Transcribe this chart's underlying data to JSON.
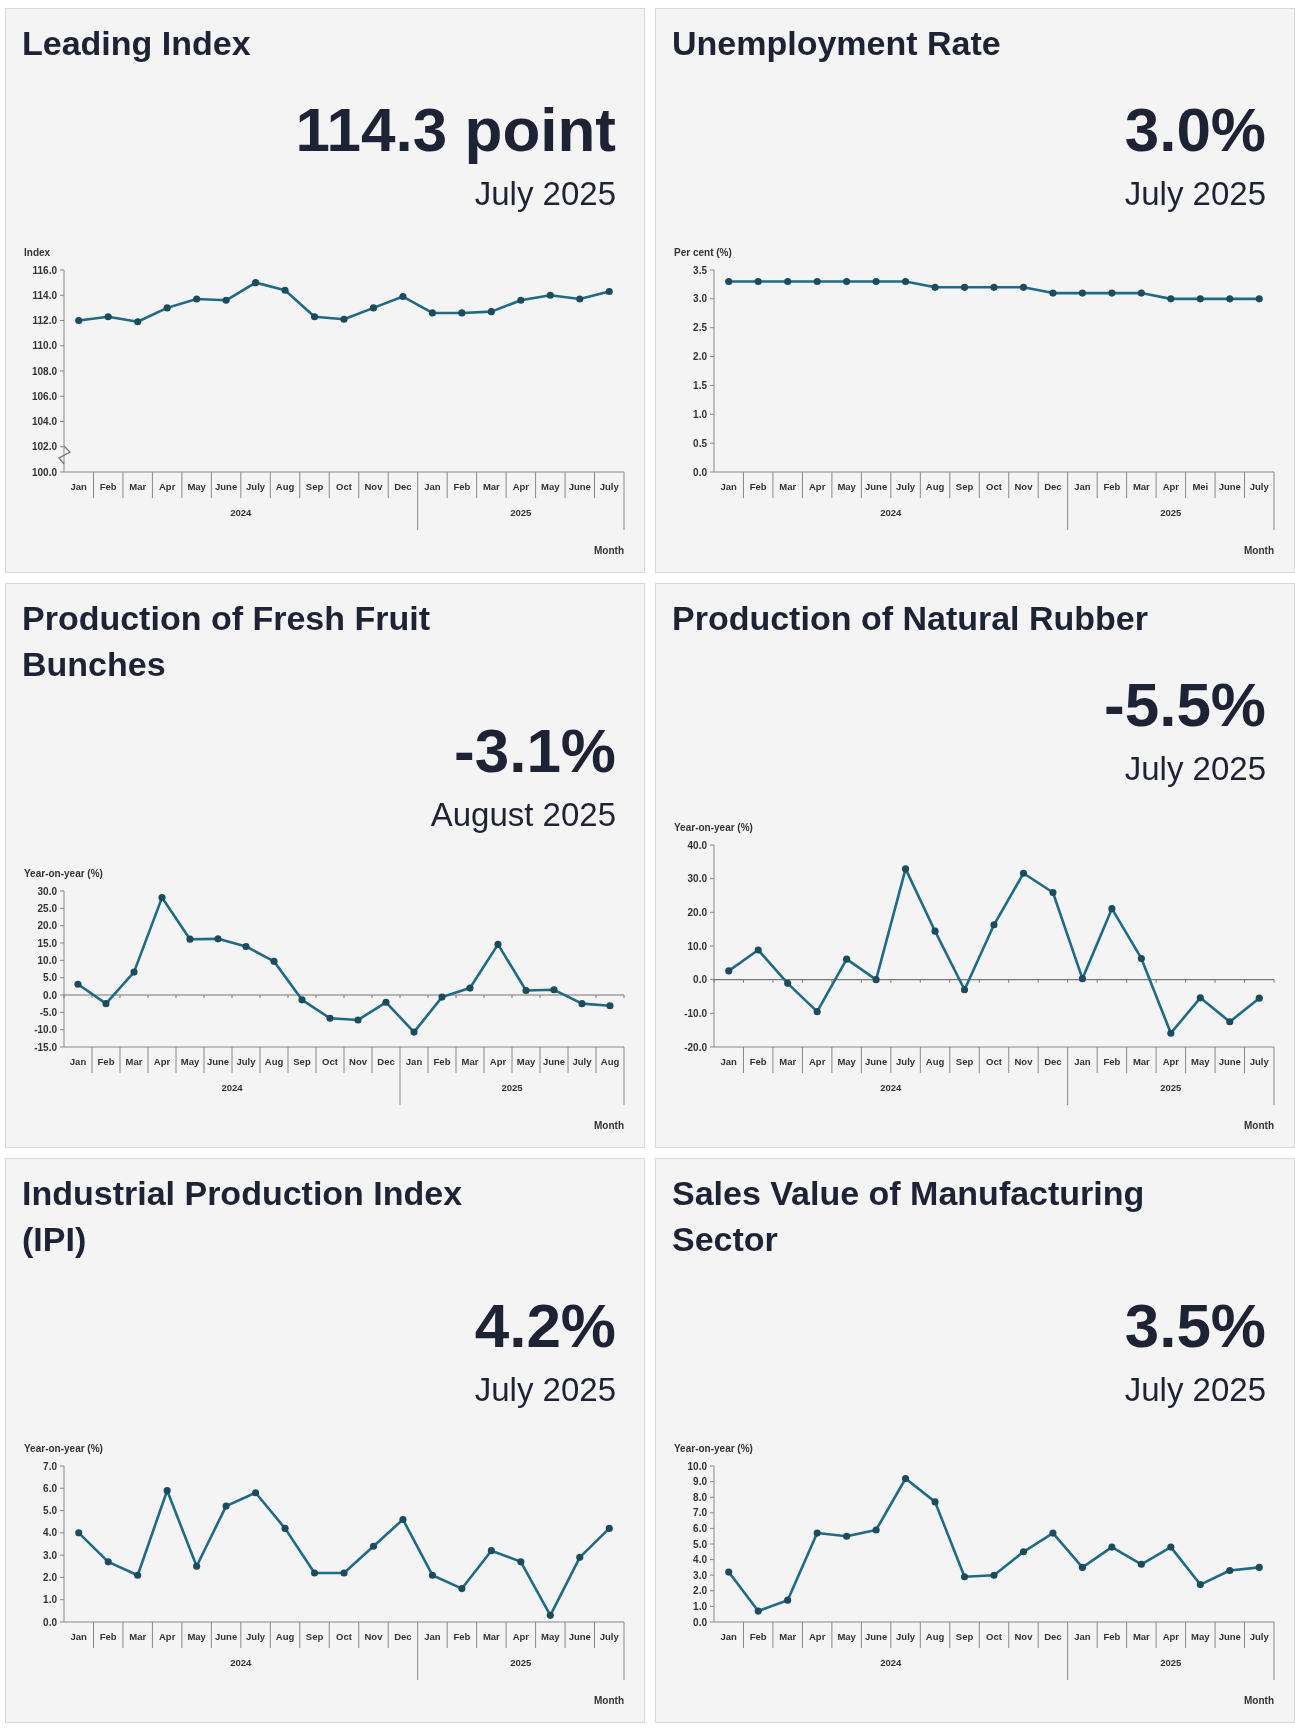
{
  "chart_data": [
    {
      "type": "line",
      "title": "Leading Index",
      "subtitle": "114.3 point",
      "annotations": [
        "July 2025",
        "2024",
        "2025"
      ],
      "ylabel": "Index",
      "xlabel": "Month",
      "marker": "circle",
      "categories": [
        "Jan",
        "Feb",
        "Mar",
        "Apr",
        "May",
        "June",
        "July",
        "Aug",
        "Sep",
        "Oct",
        "Nov",
        "Dec",
        "Jan",
        "Feb",
        "Mar",
        "Apr",
        "May",
        "June",
        "July"
      ],
      "series": [
        {
          "color": "#1f6a85",
          "values": [
            112.0,
            112.3,
            111.9,
            113.0,
            113.7,
            113.6,
            115.0,
            114.4,
            112.3,
            112.1,
            113.0,
            113.9,
            112.6,
            112.6,
            112.7,
            113.6,
            114.0,
            113.7,
            114.3
          ]
        }
      ],
      "ylim": [
        100,
        116
      ],
      "yticks": [
        {
          "value": 100,
          "label": "100.0"
        },
        {
          "value": 102,
          "label": "102.0"
        },
        {
          "value": 104,
          "label": "104.0"
        },
        {
          "value": 106,
          "label": "106.0"
        },
        {
          "value": 108,
          "label": "108.0"
        },
        {
          "value": 110,
          "label": "110.0"
        },
        {
          "value": 112,
          "label": "112.0"
        },
        {
          "value": 114,
          "label": "114.0"
        },
        {
          "value": 116,
          "label": "116.0"
        }
      ]
    },
    {
      "type": "line",
      "title": "Unemployment Rate",
      "subtitle": "3.0%",
      "annotations": [
        "July 2025",
        "2024",
        "2025"
      ],
      "ylabel": "Per cent (%)",
      "xlabel": "Month",
      "marker": "circle",
      "categories": [
        "Jan",
        "Feb",
        "Mar",
        "Apr",
        "May",
        "June",
        "July",
        "Aug",
        "Sep",
        "Oct",
        "Nov",
        "Dec",
        "Jan",
        "Feb",
        "Mar",
        "Apr",
        "Mei",
        "June",
        "July"
      ],
      "series": [
        {
          "color": "#1f6a85",
          "values": [
            3.3,
            3.3,
            3.3,
            3.3,
            3.3,
            3.3,
            3.3,
            3.2,
            3.2,
            3.2,
            3.2,
            3.1,
            3.1,
            3.1,
            3.1,
            3.0,
            3.0,
            3.0,
            3.0
          ]
        }
      ],
      "ylim": [
        0,
        3.5
      ],
      "yticks": [
        {
          "value": 0,
          "label": "0.0"
        },
        {
          "value": 0.5,
          "label": "0.5"
        },
        {
          "value": 1,
          "label": "1.0"
        },
        {
          "value": 1.5,
          "label": "1.5"
        },
        {
          "value": 2,
          "label": "2.0"
        },
        {
          "value": 2.5,
          "label": "2.5"
        },
        {
          "value": 3,
          "label": "3.0"
        },
        {
          "value": 3.5,
          "label": "3.5"
        }
      ]
    },
    {
      "type": "line",
      "title": "Production of Fresh Fruit Bunches",
      "subtitle": "-3.1%",
      "annotations": [
        "August 2025",
        "2024",
        "2025"
      ],
      "ylabel": "Year-on-year (%)",
      "xlabel": "Month",
      "marker": "circle",
      "categories": [
        "Jan",
        "Feb",
        "Mar",
        "Apr",
        "May",
        "June",
        "July",
        "Aug",
        "Sep",
        "Oct",
        "Nov",
        "Dec",
        "Jan",
        "Feb",
        "Mar",
        "Apr",
        "May",
        "June",
        "July",
        "Aug"
      ],
      "series": [
        {
          "color": "#1f6a85",
          "values": [
            3.1,
            -2.5,
            6.6,
            28.1,
            16.1,
            16.2,
            14.0,
            9.7,
            -1.4,
            -6.7,
            -7.2,
            -2.1,
            -10.7,
            -0.6,
            2.0,
            14.6,
            1.3,
            1.5,
            -2.5,
            -3.1
          ]
        }
      ],
      "ref_lines": [
        {
          "axis": "y",
          "value": 0
        }
      ],
      "ylim": [
        -15,
        30
      ],
      "yticks": [
        {
          "value": -15,
          "label": "-15.0"
        },
        {
          "value": -10,
          "label": "-10.0"
        },
        {
          "value": -5,
          "label": "-5.0"
        },
        {
          "value": 0,
          "label": "0.0"
        },
        {
          "value": 5,
          "label": "5.0"
        },
        {
          "value": 10,
          "label": "10.0"
        },
        {
          "value": 15,
          "label": "15.0"
        },
        {
          "value": 20,
          "label": "20.0"
        },
        {
          "value": 25,
          "label": "25.0"
        },
        {
          "value": 30,
          "label": "30.0"
        }
      ]
    },
    {
      "type": "line",
      "title": "Production of Natural Rubber",
      "subtitle": "-5.5%",
      "annotations": [
        "July 2025",
        "2024",
        "2025"
      ],
      "ylabel": "Year-on-year (%)",
      "xlabel": "Month",
      "marker": "circle",
      "categories": [
        "Jan",
        "Feb",
        "Mar",
        "Apr",
        "May",
        "June",
        "July",
        "Aug",
        "Sep",
        "Oct",
        "Nov",
        "Dec",
        "Jan",
        "Feb",
        "Mar",
        "Apr",
        "May",
        "June",
        "July"
      ],
      "series": [
        {
          "color": "#1f6a85",
          "values": [
            2.6,
            8.8,
            -1.1,
            -9.5,
            6.1,
            0.0,
            32.9,
            14.4,
            -3.0,
            16.3,
            31.6,
            25.9,
            0.3,
            21.1,
            6.3,
            -15.9,
            -5.4,
            -12.5,
            -5.5
          ]
        }
      ],
      "ref_lines": [
        {
          "axis": "y",
          "value": 0
        }
      ],
      "ylim": [
        -20,
        40
      ],
      "yticks": [
        {
          "value": -20,
          "label": "-20.0"
        },
        {
          "value": -10,
          "label": "-10.0"
        },
        {
          "value": 0,
          "label": "0.0"
        },
        {
          "value": 10,
          "label": "10.0"
        },
        {
          "value": 20,
          "label": "20.0"
        },
        {
          "value": 30,
          "label": "30.0"
        },
        {
          "value": 40,
          "label": "40.0"
        }
      ]
    },
    {
      "type": "line",
      "title": "Industrial Production Index (IPI)",
      "subtitle": "4.2%",
      "annotations": [
        "July 2025",
        "2024",
        "2025"
      ],
      "ylabel": "Year-on-year (%)",
      "xlabel": "Month",
      "marker": "circle",
      "categories": [
        "Jan",
        "Feb",
        "Mar",
        "Apr",
        "May",
        "June",
        "July",
        "Aug",
        "Sep",
        "Oct",
        "Nov",
        "Dec",
        "Jan",
        "Feb",
        "Mar",
        "Apr",
        "May",
        "June",
        "July"
      ],
      "series": [
        {
          "color": "#1f6a85",
          "values": [
            4.0,
            2.7,
            2.1,
            5.9,
            2.5,
            5.2,
            5.8,
            4.2,
            2.2,
            2.2,
            3.4,
            4.6,
            2.1,
            1.5,
            3.2,
            2.7,
            0.3,
            2.9,
            4.2
          ]
        }
      ],
      "ylim": [
        0,
        7
      ],
      "yticks": [
        {
          "value": 0,
          "label": "0.0"
        },
        {
          "value": 1,
          "label": "1.0"
        },
        {
          "value": 2,
          "label": "2.0"
        },
        {
          "value": 3,
          "label": "3.0"
        },
        {
          "value": 4,
          "label": "4.0"
        },
        {
          "value": 5,
          "label": "5.0"
        },
        {
          "value": 6,
          "label": "6.0"
        },
        {
          "value": 7,
          "label": "7.0"
        }
      ]
    },
    {
      "type": "line",
      "title": "Sales Value of Manufacturing Sector",
      "subtitle": "3.5%",
      "annotations": [
        "July 2025",
        "2024",
        "2025"
      ],
      "ylabel": "Year-on-year (%)",
      "xlabel": "Month",
      "marker": "circle",
      "categories": [
        "Jan",
        "Feb",
        "Mar",
        "Apr",
        "May",
        "June",
        "July",
        "Aug",
        "Sep",
        "Oct",
        "Nov",
        "Dec",
        "Jan",
        "Feb",
        "Mar",
        "Apr",
        "May",
        "June",
        "July"
      ],
      "series": [
        {
          "color": "#1f6a85",
          "values": [
            3.2,
            0.7,
            1.4,
            5.7,
            5.5,
            5.9,
            9.2,
            7.7,
            2.9,
            3.0,
            4.5,
            5.7,
            3.5,
            4.8,
            3.7,
            4.8,
            2.4,
            3.3,
            3.5
          ]
        }
      ],
      "ylim": [
        0,
        10
      ],
      "yticks": [
        {
          "value": 0,
          "label": "0.0"
        },
        {
          "value": 1,
          "label": "1.0"
        },
        {
          "value": 2,
          "label": "2.0"
        },
        {
          "value": 3,
          "label": "3.0"
        },
        {
          "value": 4,
          "label": "4.0"
        },
        {
          "value": 5,
          "label": "5.0"
        },
        {
          "value": 6,
          "label": "6.0"
        },
        {
          "value": 7,
          "label": "7.0"
        },
        {
          "value": 8,
          "label": "8.0"
        },
        {
          "value": 9,
          "label": "9.0"
        },
        {
          "value": 10,
          "label": "10.0"
        }
      ]
    }
  ]
}
